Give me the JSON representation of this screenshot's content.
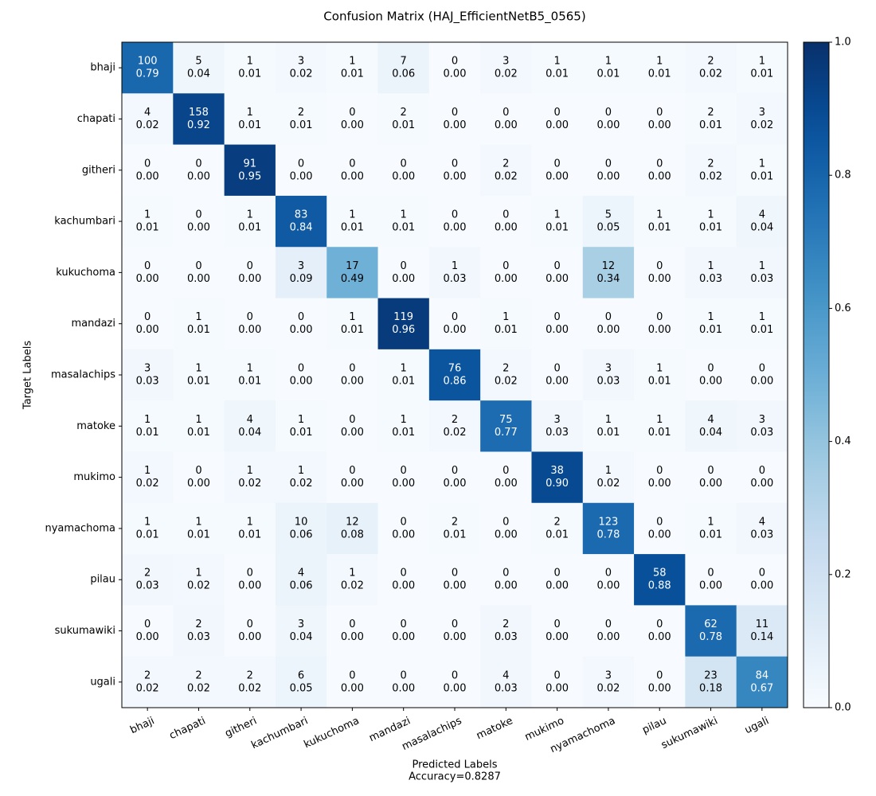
{
  "chart_data": {
    "type": "heatmap",
    "title": "Confusion Matrix (HAJ_EfficientNetB5_0565)",
    "x_label": "Predicted Labels",
    "x_label_note": "Accuracy=0.8287",
    "y_label": "Target Labels",
    "colormap": "Blues",
    "clim": [
      0,
      1
    ],
    "cticks": [
      {
        "value": 0,
        "label": "0.0"
      },
      0.2,
      0.4,
      0.6,
      0.8,
      {
        "value": 1,
        "label": "1.0"
      }
    ],
    "x_categories": [
      "bhaji",
      "chapati",
      "githeri",
      "kachumbari",
      "kukuchoma",
      "mandazi",
      "masalachips",
      "matoke",
      "mukimo",
      "nyamachoma",
      "pilau",
      "sukumawiki",
      "ugali"
    ],
    "y_categories": [
      "bhaji",
      "chapati",
      "githeri",
      "kachumbari",
      "kukuchoma",
      "mandazi",
      "masalachips",
      "matoke",
      "mukimo",
      "nyamachoma",
      "pilau",
      "sukumawiki",
      "ugali"
    ],
    "values": [
      [
        100,
        5,
        1,
        3,
        1,
        7,
        0,
        3,
        1,
        1,
        1,
        2,
        1
      ],
      [
        4,
        158,
        1,
        2,
        0,
        2,
        0,
        0,
        0,
        0,
        0,
        2,
        3
      ],
      [
        0,
        0,
        91,
        0,
        0,
        0,
        0,
        2,
        0,
        0,
        0,
        2,
        1
      ],
      [
        1,
        0,
        1,
        83,
        1,
        1,
        0,
        0,
        1,
        5,
        1,
        1,
        4
      ],
      [
        0,
        0,
        0,
        3,
        17,
        0,
        1,
        0,
        0,
        12,
        0,
        1,
        1
      ],
      [
        0,
        1,
        0,
        0,
        1,
        119,
        0,
        1,
        0,
        0,
        0,
        1,
        1
      ],
      [
        3,
        1,
        1,
        0,
        0,
        1,
        76,
        2,
        0,
        3,
        1,
        0,
        0
      ],
      [
        1,
        1,
        4,
        1,
        0,
        1,
        2,
        75,
        3,
        1,
        1,
        4,
        3
      ],
      [
        1,
        0,
        1,
        1,
        0,
        0,
        0,
        0,
        38,
        1,
        0,
        0,
        0
      ],
      [
        1,
        1,
        1,
        10,
        12,
        0,
        2,
        0,
        2,
        123,
        0,
        1,
        4
      ],
      [
        2,
        1,
        0,
        4,
        1,
        0,
        0,
        0,
        0,
        0,
        58,
        0,
        0
      ],
      [
        0,
        2,
        0,
        3,
        0,
        0,
        0,
        2,
        0,
        0,
        0,
        62,
        11
      ],
      [
        2,
        2,
        2,
        6,
        0,
        0,
        0,
        4,
        0,
        3,
        0,
        23,
        84
      ]
    ],
    "normalized": [
      [
        0.79,
        0.04,
        0.01,
        0.02,
        0.01,
        0.06,
        0,
        0.02,
        0.01,
        0.01,
        0.01,
        0.02,
        0.01
      ],
      [
        0.02,
        0.92,
        0.01,
        0.01,
        0,
        0.01,
        0,
        0,
        0,
        0,
        0,
        0.01,
        0.02
      ],
      [
        0,
        0,
        0.95,
        0,
        0,
        0,
        0,
        0.02,
        0,
        0,
        0,
        0.02,
        0.01
      ],
      [
        0.01,
        0,
        0.01,
        0.84,
        0.01,
        0.01,
        0,
        0,
        0.01,
        0.05,
        0.01,
        0.01,
        0.04
      ],
      [
        0,
        0,
        0,
        0.09,
        0.49,
        0,
        0.03,
        0,
        0,
        0.34,
        0,
        0.03,
        0.03
      ],
      [
        0,
        0.01,
        0,
        0,
        0.01,
        0.96,
        0,
        0.01,
        0,
        0,
        0,
        0.01,
        0.01
      ],
      [
        0.03,
        0.01,
        0.01,
        0,
        0,
        0.01,
        0.86,
        0.02,
        0,
        0.03,
        0.01,
        0,
        0
      ],
      [
        0.01,
        0.01,
        0.04,
        0.01,
        0,
        0.01,
        0.02,
        0.77,
        0.03,
        0.01,
        0.01,
        0.04,
        0.03
      ],
      [
        0.02,
        0,
        0.02,
        0.02,
        0,
        0,
        0,
        0,
        0.9,
        0.02,
        0,
        0,
        0
      ],
      [
        0.01,
        0.01,
        0.01,
        0.06,
        0.08,
        0,
        0.01,
        0,
        0.01,
        0.78,
        0,
        0.01,
        0.03
      ],
      [
        0.03,
        0.02,
        0,
        0.06,
        0.02,
        0,
        0,
        0,
        0,
        0,
        0.88,
        0,
        0
      ],
      [
        0,
        0.03,
        0,
        0.04,
        0,
        0,
        0,
        0.03,
        0,
        0,
        0,
        0.78,
        0.14
      ],
      [
        0.02,
        0.02,
        0.02,
        0.05,
        0,
        0,
        0,
        0.03,
        0,
        0.02,
        0,
        0.18,
        0.67
      ]
    ],
    "normalized_labels": [
      [
        "0.79",
        "0.04",
        "0.01",
        "0.02",
        "0.01",
        "0.06",
        "0.00",
        "0.02",
        "0.01",
        "0.01",
        "0.01",
        "0.02",
        "0.01"
      ],
      [
        "0.02",
        "0.92",
        "0.01",
        "0.01",
        "0.00",
        "0.01",
        "0.00",
        "0.00",
        "0.00",
        "0.00",
        "0.00",
        "0.01",
        "0.02"
      ],
      [
        "0.00",
        "0.00",
        "0.95",
        "0.00",
        "0.00",
        "0.00",
        "0.00",
        "0.02",
        "0.00",
        "0.00",
        "0.00",
        "0.02",
        "0.01"
      ],
      [
        "0.01",
        "0.00",
        "0.01",
        "0.84",
        "0.01",
        "0.01",
        "0.00",
        "0.00",
        "0.01",
        "0.05",
        "0.01",
        "0.01",
        "0.04"
      ],
      [
        "0.00",
        "0.00",
        "0.00",
        "0.09",
        "0.49",
        "0.00",
        "0.03",
        "0.00",
        "0.00",
        "0.34",
        "0.00",
        "0.03",
        "0.03"
      ],
      [
        "0.00",
        "0.01",
        "0.00",
        "0.00",
        "0.01",
        "0.96",
        "0.00",
        "0.01",
        "0.00",
        "0.00",
        "0.00",
        "0.01",
        "0.01"
      ],
      [
        "0.03",
        "0.01",
        "0.01",
        "0.00",
        "0.00",
        "0.01",
        "0.86",
        "0.02",
        "0.00",
        "0.03",
        "0.01",
        "0.00",
        "0.00"
      ],
      [
        "0.01",
        "0.01",
        "0.04",
        "0.01",
        "0.00",
        "0.01",
        "0.02",
        "0.77",
        "0.03",
        "0.01",
        "0.01",
        "0.04",
        "0.03"
      ],
      [
        "0.02",
        "0.00",
        "0.02",
        "0.02",
        "0.00",
        "0.00",
        "0.00",
        "0.00",
        "0.90",
        "0.02",
        "0.00",
        "0.00",
        "0.00"
      ],
      [
        "0.01",
        "0.01",
        "0.01",
        "0.06",
        "0.08",
        "0.00",
        "0.01",
        "0.00",
        "0.01",
        "0.78",
        "0.00",
        "0.01",
        "0.03"
      ],
      [
        "0.03",
        "0.02",
        "0.00",
        "0.06",
        "0.02",
        "0.00",
        "0.00",
        "0.00",
        "0.00",
        "0.00",
        "0.88",
        "0.00",
        "0.00"
      ],
      [
        "0.00",
        "0.03",
        "0.00",
        "0.04",
        "0.00",
        "0.00",
        "0.00",
        "0.03",
        "0.00",
        "0.00",
        "0.00",
        "0.78",
        "0.14"
      ],
      [
        "0.02",
        "0.02",
        "0.02",
        "0.05",
        "0.00",
        "0.00",
        "0.00",
        "0.03",
        "0.00",
        "0.02",
        "0.00",
        "0.18",
        "0.67"
      ]
    ]
  }
}
